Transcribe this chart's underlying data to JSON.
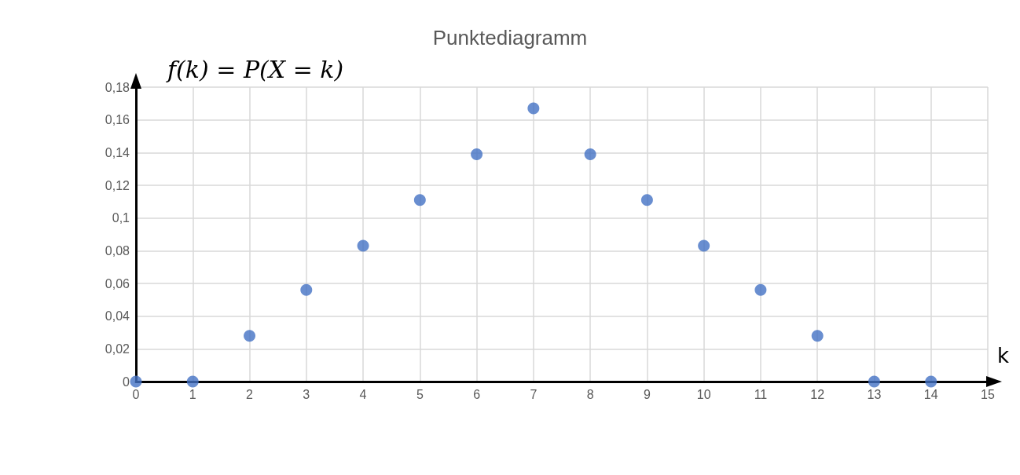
{
  "chart_data": {
    "type": "scatter",
    "title": "Punktediagramm",
    "xlabel": "k",
    "ylabel": "f(k) = P(X = k)",
    "x": [
      0,
      1,
      2,
      3,
      4,
      5,
      6,
      7,
      8,
      9,
      10,
      11,
      12,
      13,
      14
    ],
    "series": [
      {
        "color": "#4472c4",
        "values": [
          0,
          0,
          0.028,
          0.056,
          0.083,
          0.111,
          0.139,
          0.167,
          0.139,
          0.111,
          0.083,
          0.056,
          0.028,
          0,
          0
        ]
      }
    ],
    "xlim": [
      0,
      15
    ],
    "xticks": [
      0,
      1,
      2,
      3,
      4,
      5,
      6,
      7,
      8,
      9,
      10,
      11,
      12,
      13,
      14,
      15
    ],
    "ylim": [
      0,
      0.18
    ],
    "yticks": [
      {
        "value": 0,
        "label": "0"
      },
      {
        "value": 0.02,
        "label": "0,02"
      },
      {
        "value": 0.04,
        "label": "0,04"
      },
      {
        "value": 0.06,
        "label": "0,06"
      },
      {
        "value": 0.08,
        "label": "0,08"
      },
      {
        "value": 0.1,
        "label": "0,1"
      },
      {
        "value": 0.12,
        "label": "0,12"
      },
      {
        "value": 0.14,
        "label": "0,14"
      },
      {
        "value": 0.16,
        "label": "0,16"
      },
      {
        "value": 0.18,
        "label": "0,18"
      }
    ],
    "grid": true,
    "marker": "circle"
  }
}
